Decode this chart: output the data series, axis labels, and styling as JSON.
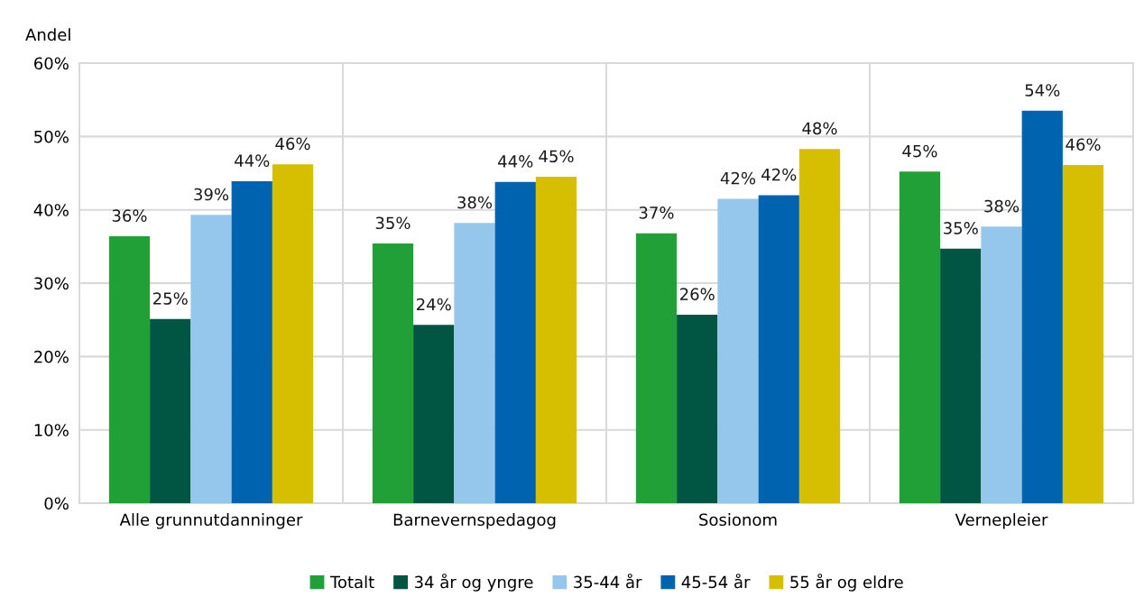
{
  "chart_data": {
    "type": "bar",
    "ylabel": "Andel",
    "categories": [
      "Alle grunnutdanninger",
      "Barnevernspedagog",
      "Sosionom",
      "Vernepleier"
    ],
    "series": [
      {
        "name": "Totalt",
        "color": "#21a038",
        "values": [
          36.4,
          35.4,
          36.8,
          45.2
        ],
        "value_labels": [
          "36%",
          "35%",
          "37%",
          "45%"
        ]
      },
      {
        "name": "34 år og yngre",
        "color": "#005643",
        "values": [
          25.1,
          24.3,
          25.7,
          34.7
        ],
        "value_labels": [
          "25%",
          "24%",
          "26%",
          "35%"
        ]
      },
      {
        "name": "35-44 år",
        "color": "#95c6eb",
        "values": [
          39.3,
          38.2,
          41.5,
          37.7
        ],
        "value_labels": [
          "39%",
          "38%",
          "42%",
          "38%"
        ]
      },
      {
        "name": "45-54 år",
        "color": "#0063af",
        "values": [
          43.9,
          43.8,
          42.0,
          53.5
        ],
        "value_labels": [
          "44%",
          "44%",
          "42%",
          "54%"
        ]
      },
      {
        "name": "55 år og eldre",
        "color": "#d6bf00",
        "values": [
          46.2,
          44.5,
          48.3,
          46.1
        ],
        "value_labels": [
          "46%",
          "45%",
          "48%",
          "46%"
        ]
      }
    ],
    "ylim": [
      0,
      60
    ],
    "yticks": [
      {
        "value": 0,
        "label": "0%"
      },
      {
        "value": 10,
        "label": "10%"
      },
      {
        "value": 20,
        "label": "20%"
      },
      {
        "value": 30,
        "label": "30%"
      },
      {
        "value": 40,
        "label": "40%"
      },
      {
        "value": 50,
        "label": "50%"
      },
      {
        "value": 60,
        "label": "60%"
      }
    ],
    "grid": true,
    "legend": "bottom"
  }
}
